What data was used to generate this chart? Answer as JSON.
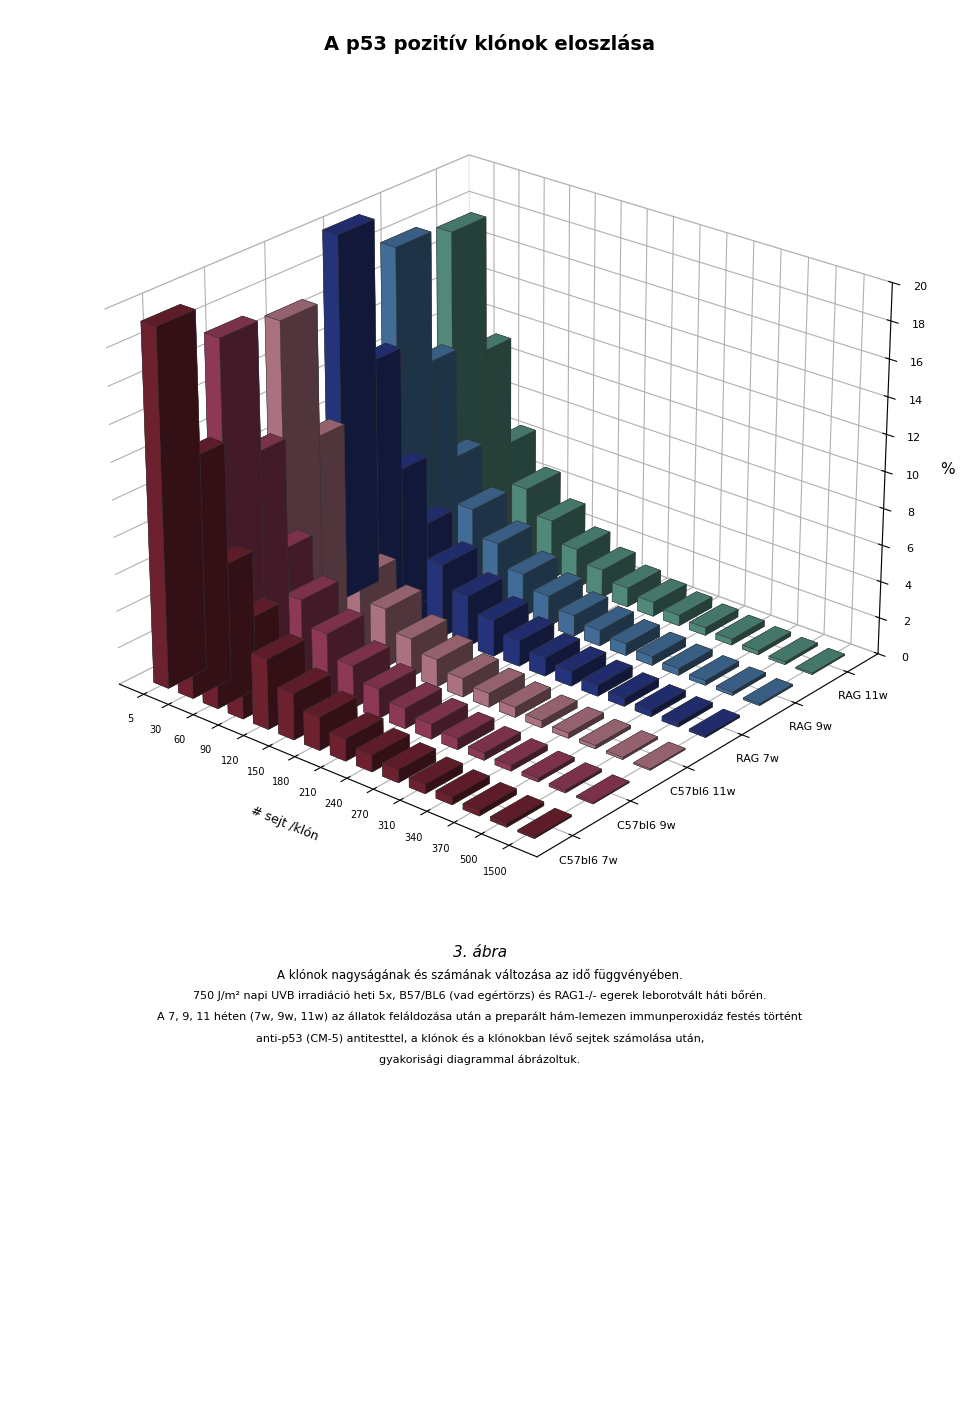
{
  "title": "A p53 pozitív klónok eloszlása",
  "xlabel": "# sejt /klón",
  "ylabel": "%",
  "series_labels": [
    "C57bl6 7w",
    "C57bl6 9w",
    "C57bl6 11w",
    "RAG 7w",
    "RAG 9w",
    "RAG 11w"
  ],
  "x_labels": [
    "5",
    "30",
    "60",
    "90",
    "120",
    "150",
    "180",
    "210",
    "240",
    "270",
    "310",
    "340",
    "370",
    "500",
    "1500"
  ],
  "x_values": [
    5,
    30,
    60,
    90,
    120,
    150,
    180,
    210,
    240,
    270,
    310,
    340,
    370,
    500,
    1500
  ],
  "colors": [
    "#6B1A2A",
    "#9B3A5A",
    "#C57A8A",
    "#1A2A6B",
    "#3A7A9B",
    "#5A9B8A"
  ],
  "face_colors": [
    "#7B2535",
    "#AB4A6A",
    "#D58A9A",
    "#2A3A7B",
    "#4A8AAB",
    "#6AAB9A"
  ],
  "data": [
    [
      19.3,
      12.8,
      7.5,
      5.2,
      3.8,
      2.5,
      1.8,
      1.2,
      0.9,
      0.7,
      0.5,
      0.4,
      0.3,
      0.2,
      0.1
    ],
    [
      17.3,
      11.5,
      6.8,
      4.8,
      3.5,
      2.3,
      1.6,
      1.1,
      0.8,
      0.6,
      0.4,
      0.3,
      0.2,
      0.15,
      0.08
    ],
    [
      16.8,
      10.8,
      6.2,
      4.4,
      3.2,
      2.1,
      1.5,
      1.0,
      0.75,
      0.55,
      0.38,
      0.28,
      0.18,
      0.12,
      0.07
    ],
    [
      20.0,
      13.5,
      8.0,
      5.5,
      4.0,
      2.8,
      2.0,
      1.4,
      1.0,
      0.8,
      0.6,
      0.45,
      0.35,
      0.25,
      0.12
    ],
    [
      18.0,
      12.0,
      7.2,
      5.0,
      3.6,
      2.4,
      1.7,
      1.15,
      0.85,
      0.65,
      0.48,
      0.36,
      0.26,
      0.18,
      0.09
    ],
    [
      17.5,
      11.2,
      6.5,
      4.6,
      3.3,
      2.2,
      1.55,
      1.05,
      0.78,
      0.58,
      0.42,
      0.32,
      0.22,
      0.15,
      0.08
    ]
  ],
  "ylim": [
    0,
    20
  ],
  "yticks": [
    0,
    2,
    4,
    6,
    8,
    10,
    12,
    14,
    16,
    18,
    20
  ],
  "background_color": "#FFFFFF",
  "figsize": [
    9.6,
    14.21
  ],
  "dpi": 100
}
